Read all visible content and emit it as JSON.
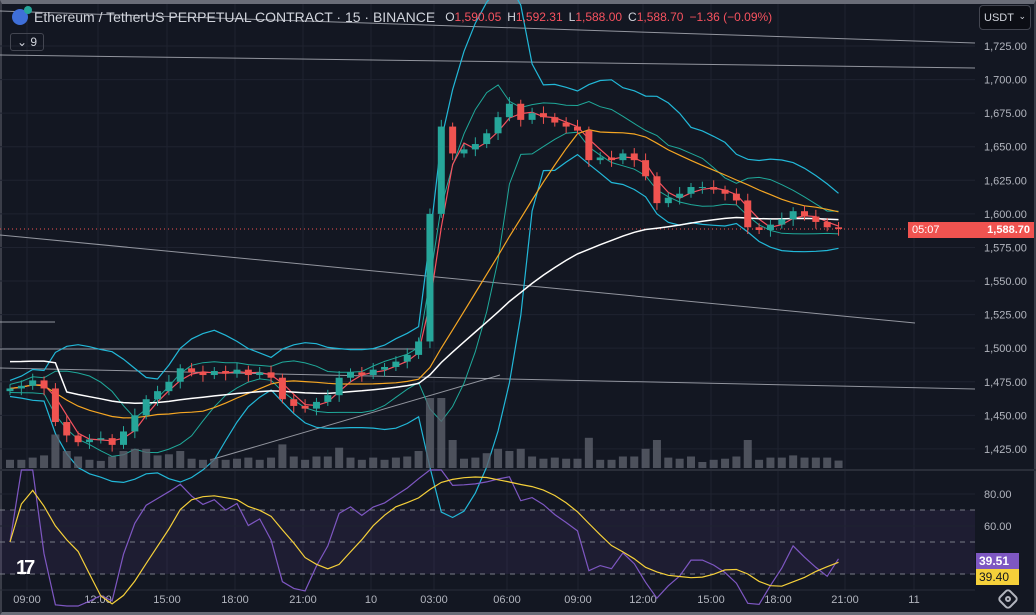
{
  "header": {
    "symbol": "Ethereum / TetherUS PERPETUAL CONTRACT · 15 · BINANCE",
    "ohlc": [
      {
        "k": "O",
        "v": "1,590.05"
      },
      {
        "k": "H",
        "v": "1,592.31"
      },
      {
        "k": "L",
        "v": "1,588.00"
      },
      {
        "k": "C",
        "v": "1,588.70"
      }
    ],
    "change": "−1.36 (−0.09%)",
    "indicators_collapsed": "9"
  },
  "currency": "USDT",
  "price_tag": {
    "price": "1,588.70",
    "countdown": "05:07"
  },
  "rsi_tags": {
    "rsi": "39.51",
    "rsi_ma": "39.40"
  },
  "colors": {
    "up": "#26a69a",
    "down": "#ef5350",
    "bb": "#22b8d8",
    "ma_fast": "#f7525f",
    "ma_mid": "#f5a623",
    "ma_slow": "#ffffff",
    "rsi": "#7e57c2",
    "rsi_ma": "#f5d03a"
  },
  "chart_data": {
    "type": "candlestick",
    "title": "Ethereum / TetherUS PERPETUAL CONTRACT · 15 · BINANCE",
    "ylim": [
      1415,
      1735
    ],
    "y_ticks": [
      "1,725.00",
      "1,700.00",
      "1,675.00",
      "1,650.00",
      "1,625.00",
      "1,600.00",
      "1,575.00",
      "1,550.00",
      "1,525.00",
      "1,500.00",
      "1,475.00",
      "1,450.00",
      "1,425.00"
    ],
    "y_tick_values": [
      1725,
      1700,
      1675,
      1650,
      1625,
      1600,
      1575,
      1550,
      1525,
      1500,
      1475,
      1450,
      1425
    ],
    "x_ticks": [
      "09:00",
      "12:00",
      "15:00",
      "18:00",
      "21:00",
      "10",
      "03:00",
      "06:00",
      "09:00",
      "12:00",
      "15:00",
      "18:00",
      "21:00",
      "11"
    ],
    "rsi_ticks": [
      "80.00",
      "60.00"
    ],
    "rsi_tick_values": [
      80,
      60
    ],
    "rsi_bands": [
      70,
      50,
      30
    ],
    "closes": [
      1470,
      1472,
      1476,
      1470,
      1445,
      1435,
      1430,
      1432,
      1433,
      1428,
      1438,
      1450,
      1462,
      1468,
      1475,
      1485,
      1482,
      1480,
      1483,
      1481,
      1484,
      1480,
      1482,
      1478,
      1462,
      1457,
      1455,
      1460,
      1465,
      1478,
      1482,
      1480,
      1484,
      1486,
      1490,
      1495,
      1505,
      1600,
      1665,
      1645,
      1648,
      1652,
      1660,
      1672,
      1682,
      1670,
      1675,
      1672,
      1668,
      1665,
      1662,
      1640,
      1642,
      1640,
      1645,
      1640,
      1628,
      1608,
      1612,
      1615,
      1620,
      1620,
      1618,
      1615,
      1610,
      1590,
      1588,
      1592,
      1596,
      1602,
      1598,
      1594,
      1590,
      1588.7
    ]
  }
}
